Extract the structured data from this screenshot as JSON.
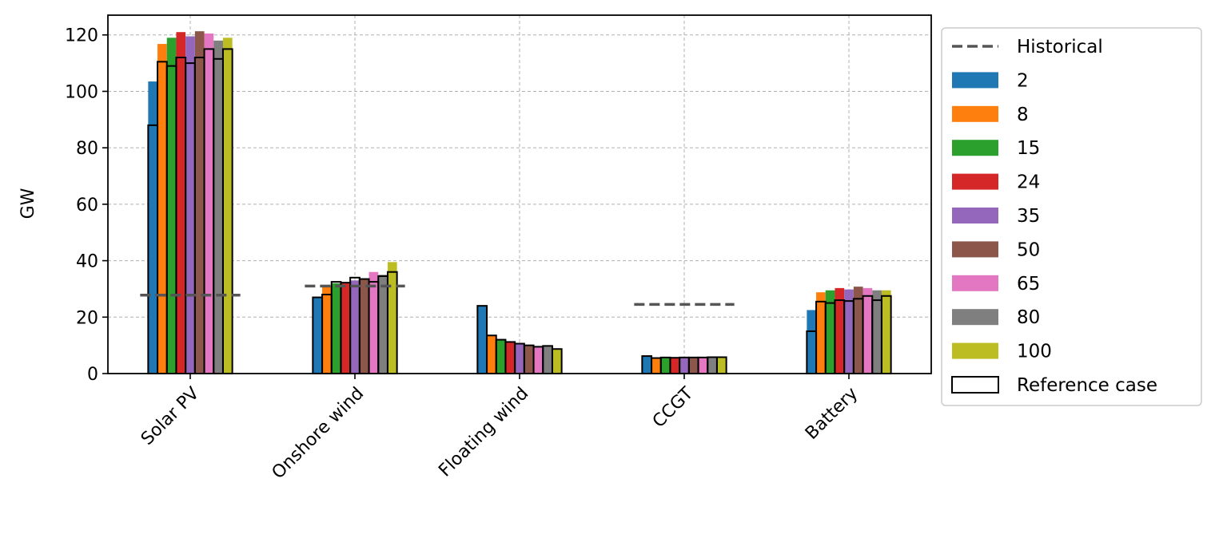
{
  "chart_data": {
    "type": "bar",
    "title": "",
    "xlabel": "",
    "ylabel": "GW",
    "ylim": [
      0,
      127
    ],
    "yticks": [
      0,
      20,
      40,
      60,
      80,
      100,
      120
    ],
    "grid": true,
    "legend_position": "outside-right",
    "categories": [
      "Solar PV",
      "Onshore wind",
      "Floating wind",
      "CCGT",
      "Battery"
    ],
    "series": [
      {
        "name": "2",
        "color": "#1f77b4",
        "values": [
          103.5,
          27.0,
          24.0,
          6.2,
          22.5
        ]
      },
      {
        "name": "8",
        "color": "#ff7f0e",
        "values": [
          116.8,
          31.2,
          13.5,
          5.5,
          28.8
        ]
      },
      {
        "name": "15",
        "color": "#2ca02c",
        "values": [
          119.0,
          32.0,
          12.0,
          5.7,
          29.5
        ]
      },
      {
        "name": "24",
        "color": "#d62728",
        "values": [
          121.0,
          32.4,
          11.2,
          5.6,
          30.3
        ]
      },
      {
        "name": "35",
        "color": "#9467bd",
        "values": [
          119.5,
          33.0,
          10.6,
          5.7,
          29.8
        ]
      },
      {
        "name": "50",
        "color": "#8c564b",
        "values": [
          121.3,
          33.4,
          10.0,
          5.7,
          30.8
        ]
      },
      {
        "name": "65",
        "color": "#e377c2",
        "values": [
          120.5,
          36.0,
          9.5,
          5.7,
          30.3
        ]
      },
      {
        "name": "80",
        "color": "#7f7f7f",
        "values": [
          118.0,
          35.0,
          9.8,
          5.8,
          29.5
        ]
      },
      {
        "name": "100",
        "color": "#bcbd22",
        "values": [
          119.0,
          39.5,
          8.7,
          5.8,
          29.5
        ]
      }
    ],
    "reference_case": {
      "name": "Reference case",
      "values": [
        [
          88.0,
          110.5,
          109.0,
          112.0,
          110.0,
          112.0,
          115.0,
          111.5,
          115.0
        ],
        [
          27.0,
          28.0,
          32.5,
          32.2,
          34.0,
          33.5,
          32.5,
          34.5,
          36.0
        ],
        [
          24.0,
          13.5,
          12.0,
          11.2,
          10.6,
          10.0,
          9.5,
          9.8,
          8.7
        ],
        [
          6.2,
          5.5,
          5.7,
          5.6,
          5.7,
          5.7,
          5.7,
          5.8,
          5.8
        ],
        [
          15.0,
          25.5,
          25.0,
          26.0,
          25.7,
          26.5,
          27.5,
          26.0,
          27.5
        ]
      ]
    },
    "historical": {
      "name": "Historical",
      "color": "#555555",
      "values": [
        27.8,
        31.0,
        null,
        24.5,
        null
      ]
    }
  }
}
